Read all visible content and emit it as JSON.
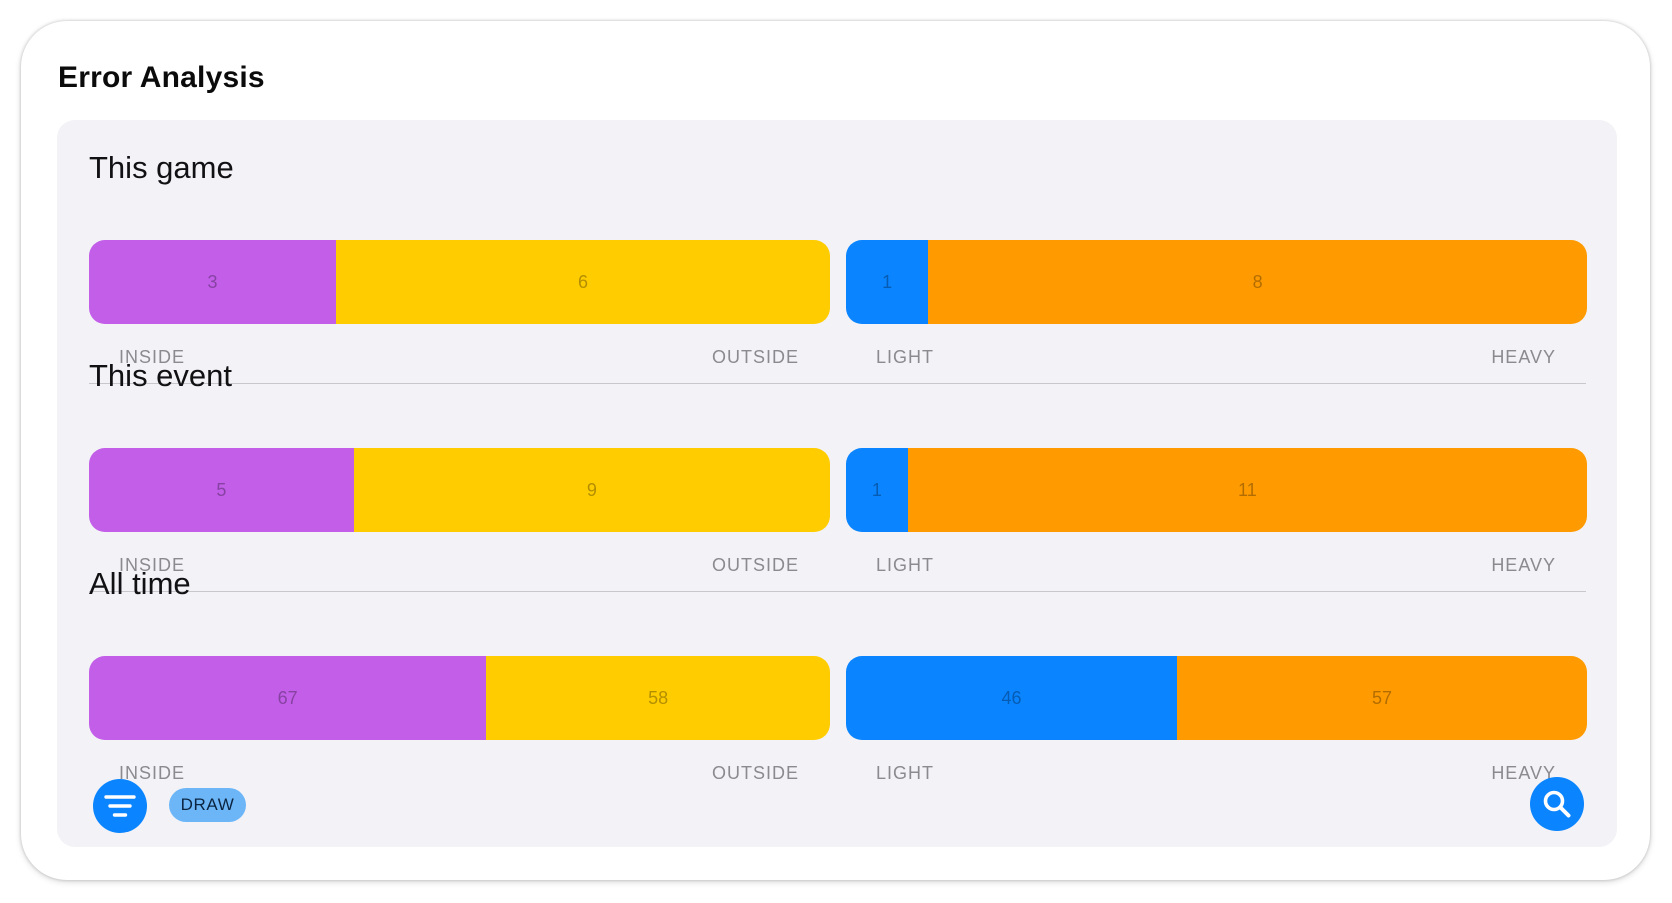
{
  "title": "Error Analysis",
  "colors": {
    "inside": "#c25ee8",
    "outside": "#ffcc00",
    "light": "#0a84ff",
    "heavy": "#ff9b00",
    "accent": "#0a84ff",
    "badge": "#6cb6f8"
  },
  "labels": {
    "inside": "INSIDE",
    "outside": "OUTSIDE",
    "light": "LIGHT",
    "heavy": "HEAVY"
  },
  "sections": [
    {
      "title": "This game",
      "inside": 3,
      "outside": 6,
      "light": 1,
      "heavy": 8
    },
    {
      "title": "This event",
      "inside": 5,
      "outside": 9,
      "light": 1,
      "heavy": 11
    },
    {
      "title": "All time",
      "inside": 67,
      "outside": 58,
      "light": 46,
      "heavy": 57
    }
  ],
  "footer": {
    "filter_icon": "filter-lines-icon",
    "draw_label": "DRAW",
    "search_icon": "magnifying-glass-icon"
  }
}
